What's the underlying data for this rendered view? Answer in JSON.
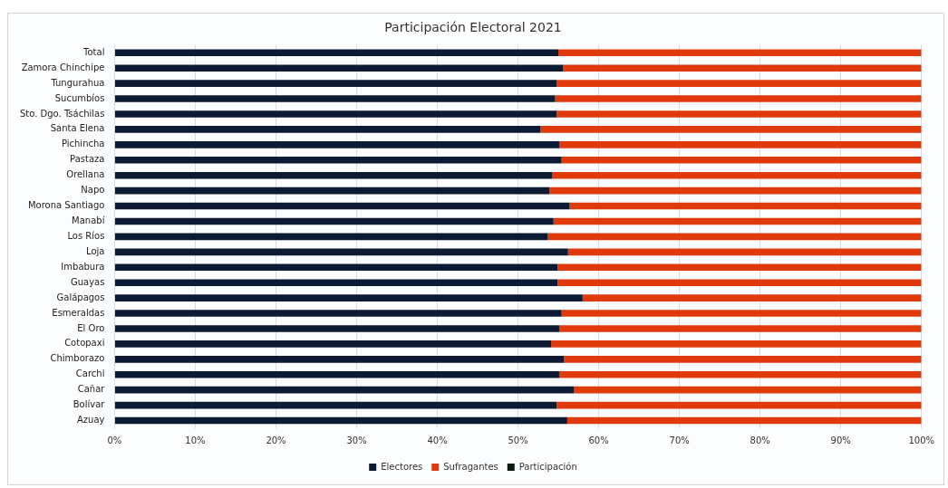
{
  "chart_data": {
    "type": "bar",
    "orientation": "horizontal",
    "stacked": true,
    "title": "Participación Electoral 2021",
    "categories": [
      "Total",
      "Zamora Chinchipe",
      "Tungurahua",
      "Sucumbíos",
      "Sto. Dgo. Tsáchilas",
      "Santa Elena",
      "Pichincha",
      "Pastaza",
      "Orellana",
      "Napo",
      "Morona Santiago",
      "Manabí",
      "Los Ríos",
      "Loja",
      "Imbabura",
      "Guayas",
      "Galápagos",
      "Esmeraldas",
      "El Oro",
      "Cotopaxi",
      "Chimborazo",
      "Carchi",
      "Cañar",
      "Bolívar",
      "Azuay"
    ],
    "series": [
      {
        "name": "Electores",
        "color": "#0c1a33",
        "values": [
          55.0,
          55.6,
          54.8,
          54.6,
          54.8,
          52.8,
          55.1,
          55.4,
          54.2,
          53.9,
          56.4,
          54.4,
          53.7,
          56.2,
          54.9,
          54.9,
          58.0,
          55.4,
          55.1,
          54.1,
          55.7,
          55.1,
          56.9,
          54.8,
          56.1
        ]
      },
      {
        "name": "Sufragantes",
        "color": "#e03a0c",
        "values": [
          45.0,
          44.4,
          45.2,
          45.4,
          45.2,
          47.2,
          44.9,
          44.6,
          45.8,
          46.1,
          43.6,
          45.6,
          46.3,
          43.8,
          45.1,
          45.1,
          42.0,
          44.6,
          44.9,
          45.9,
          44.3,
          44.9,
          43.1,
          45.2,
          43.9
        ]
      },
      {
        "name": "Participación",
        "color": "#0a1a10",
        "values": [
          null,
          null,
          null,
          null,
          null,
          null,
          null,
          null,
          null,
          null,
          null,
          null,
          null,
          null,
          null,
          null,
          null,
          null,
          null,
          null,
          null,
          null,
          null,
          null,
          null
        ]
      }
    ],
    "xlim": [
      0,
      100
    ],
    "xticks": [
      {
        "value": 0,
        "label": "0%"
      },
      {
        "value": 10,
        "label": "10%"
      },
      {
        "value": 20,
        "label": "20%"
      },
      {
        "value": 30,
        "label": "30%"
      },
      {
        "value": 40,
        "label": "40%"
      },
      {
        "value": 50,
        "label": "50%"
      },
      {
        "value": 60,
        "label": "60%"
      },
      {
        "value": 70,
        "label": "70%"
      },
      {
        "value": 80,
        "label": "80%"
      },
      {
        "value": 90,
        "label": "90%"
      },
      {
        "value": 100,
        "label": "100%"
      }
    ],
    "grid": "x",
    "legend": "bottom"
  }
}
